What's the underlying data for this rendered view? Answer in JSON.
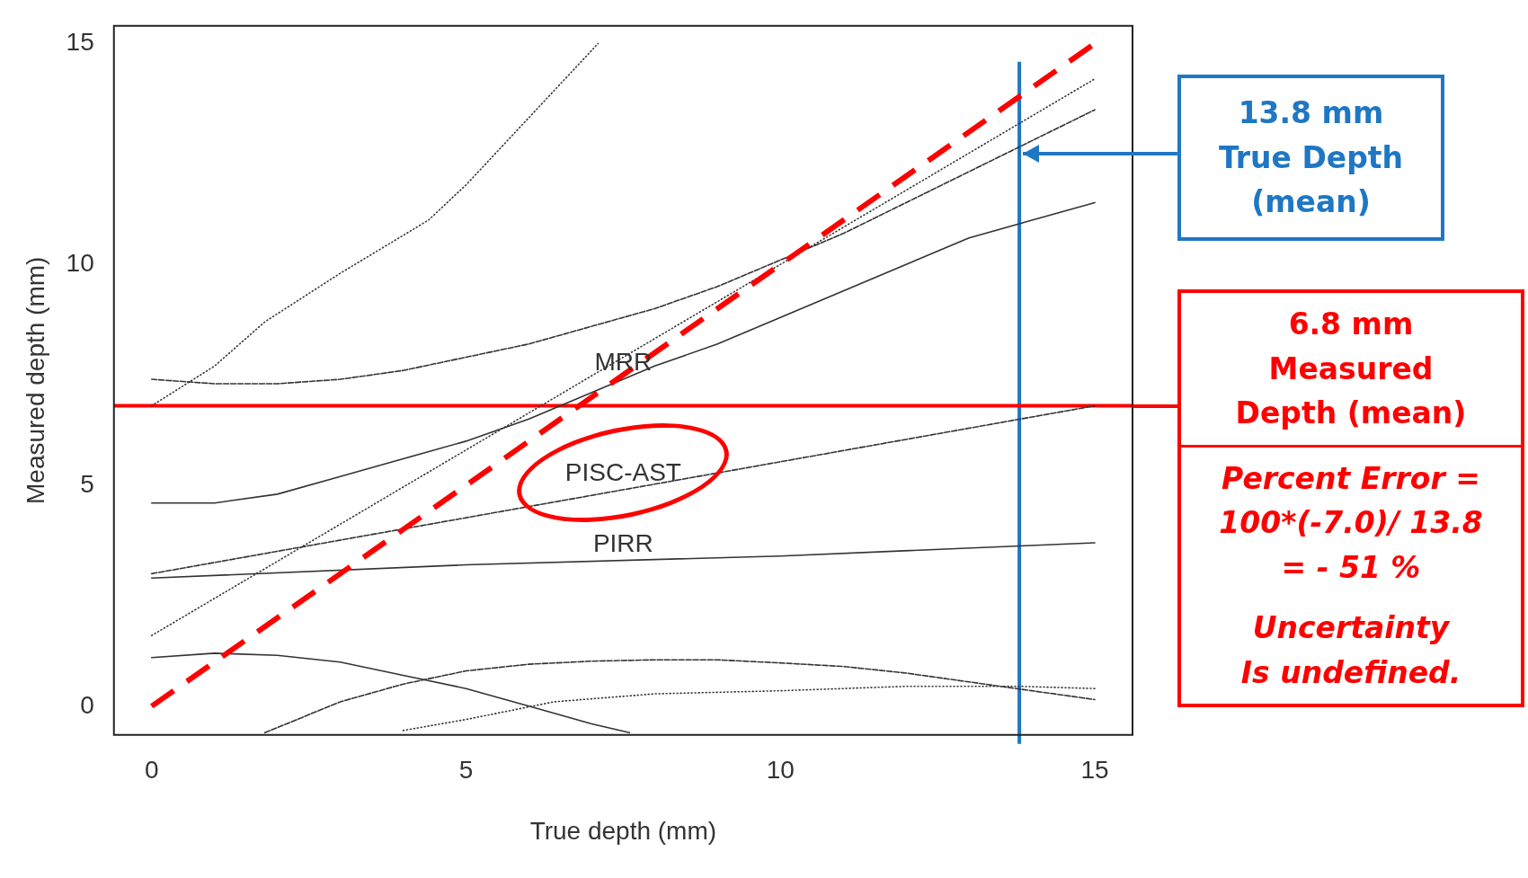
{
  "chart_data": {
    "type": "line",
    "xlabel": "True depth (mm)",
    "ylabel": "Measured depth (mm)",
    "xlim": [
      -0.6,
      15.6
    ],
    "ylim": [
      -0.65,
      15.4
    ],
    "xticks": [
      0,
      5,
      10,
      15
    ],
    "yticks": [
      0,
      5,
      10,
      15
    ],
    "grid": false,
    "legend": false,
    "marker": "none",
    "series": [
      {
        "color": "#ff0000",
        "line_style": "dashed",
        "x": [
          0,
          15
        ],
        "values": [
          0,
          15
        ]
      },
      {
        "name": "MRR",
        "color": "#333333",
        "line_style": "solid",
        "x": [
          0,
          1,
          2,
          3,
          4,
          5,
          6,
          7,
          8,
          9,
          10,
          11,
          12,
          13,
          14,
          15
        ],
        "values": [
          4.6,
          4.6,
          4.8,
          5.2,
          5.6,
          6.0,
          6.5,
          7.1,
          7.7,
          8.2,
          8.8,
          9.4,
          10.0,
          10.6,
          11.0,
          11.4
        ]
      },
      {
        "color": "#333333",
        "line_style": "dashed",
        "x": [
          0,
          1,
          2,
          3,
          4,
          5,
          6,
          7,
          8,
          9,
          10,
          11,
          12,
          13,
          14,
          15
        ],
        "values": [
          7.4,
          7.3,
          7.3,
          7.4,
          7.6,
          7.9,
          8.2,
          8.6,
          9.0,
          9.5,
          10.1,
          10.7,
          11.4,
          12.1,
          12.8,
          13.5
        ]
      },
      {
        "name": "PISC-AST",
        "color": "#333333",
        "line_style": "dashed",
        "x": [
          0,
          15
        ],
        "values": [
          3.0,
          6.8
        ]
      },
      {
        "name": "PIRR",
        "color": "#333333",
        "line_style": "solid",
        "x": [
          0,
          5,
          10,
          15
        ],
        "values": [
          2.9,
          3.2,
          3.4,
          3.7
        ]
      },
      {
        "color": "#333333",
        "line_style": "solid",
        "x": [
          0,
          1,
          2,
          3,
          4,
          5,
          6,
          7,
          7.6
        ],
        "values": [
          1.1,
          1.2,
          1.15,
          1.0,
          0.7,
          0.4,
          0.0,
          -0.4,
          -0.6
        ]
      },
      {
        "color": "#333333",
        "line_style": "dashed",
        "x": [
          1.8,
          3,
          4,
          5,
          6,
          7,
          8,
          9,
          10,
          11,
          12,
          13,
          14,
          15
        ],
        "values": [
          -0.6,
          0.1,
          0.5,
          0.8,
          0.95,
          1.02,
          1.05,
          1.05,
          0.98,
          0.9,
          0.75,
          0.55,
          0.35,
          0.15
        ]
      },
      {
        "color": "#333333",
        "line_style": "dotted",
        "x": [
          0,
          1,
          1.8,
          3,
          4.4,
          5,
          6.05,
          7.1
        ],
        "values": [
          6.8,
          7.7,
          8.7,
          9.8,
          11.0,
          11.8,
          13.4,
          15.0
        ]
      },
      {
        "color": "#333333",
        "line_style": "dotted",
        "x": [
          4,
          5,
          6.4,
          8,
          10,
          12,
          13.8,
          15
        ],
        "values": [
          -0.55,
          -0.3,
          0.1,
          0.28,
          0.35,
          0.45,
          0.45,
          0.4
        ]
      },
      {
        "color": "#333333",
        "line_style": "dotted",
        "x": [
          0,
          15
        ],
        "values": [
          1.6,
          14.2
        ]
      }
    ],
    "ref_lines": [
      {
        "axis": "x",
        "value": 13.8,
        "label": "13.8 mm\nTrue Depth\n(mean)",
        "color": "#1f77c4"
      },
      {
        "axis": "y",
        "value": 6.8,
        "label": "6.8 mm\nMeasured\nDepth (mean)",
        "color": "#ff0000"
      }
    ],
    "annotations": [
      "Percent Error =\n100*(-7.0)/ 13.8\n=  - 51 %",
      "Uncertainty\nIs undefined."
    ]
  }
}
